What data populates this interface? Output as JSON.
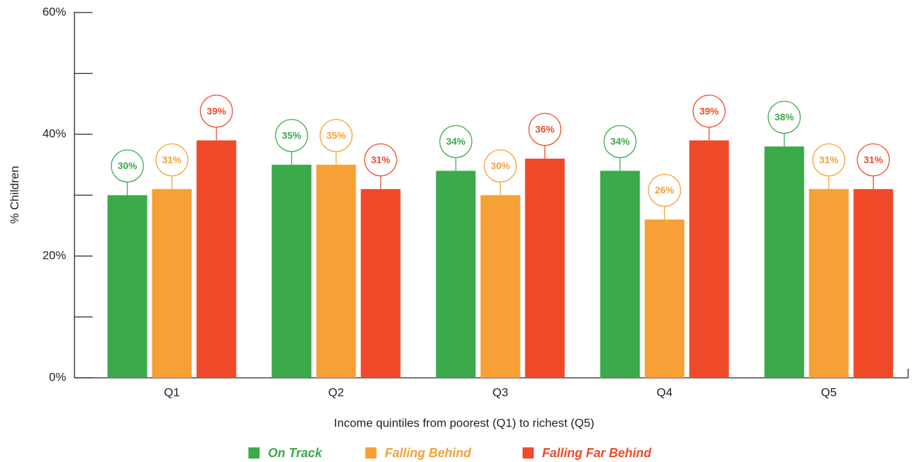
{
  "chart_data": {
    "type": "bar",
    "y_label": "% Children",
    "x_label": "Income quintiles from poorest (Q1) to richest (Q5)",
    "categories": [
      "Q1",
      "Q2",
      "Q3",
      "Q4",
      "Q5"
    ],
    "series": [
      {
        "name": "On Track",
        "color": "#3aaa4a",
        "values": [
          30,
          35,
          34,
          34,
          38
        ],
        "value_labels": [
          "30%",
          "35%",
          "34%",
          "34%",
          "38%"
        ]
      },
      {
        "name": "Falling Behind",
        "color": "#f7a035",
        "values": [
          31,
          35,
          30,
          26,
          31
        ],
        "value_labels": [
          "31%",
          "35%",
          "30%",
          "26%",
          "31%"
        ]
      },
      {
        "name": "Falling Far Behind",
        "color": "#ef4a2a",
        "values": [
          39,
          31,
          36,
          39,
          31
        ],
        "value_labels": [
          "39%",
          "31%",
          "36%",
          "39%",
          "31%"
        ]
      }
    ],
    "ylim": [
      0,
      60
    ],
    "yticks": [
      {
        "value": 0,
        "label": "0%"
      },
      {
        "value": 20,
        "label": "20%"
      },
      {
        "value": 40,
        "label": "40%"
      },
      {
        "value": 60,
        "label": "60%"
      }
    ],
    "yminor_ticks": [
      10,
      30,
      50
    ],
    "legend": "bottom"
  }
}
